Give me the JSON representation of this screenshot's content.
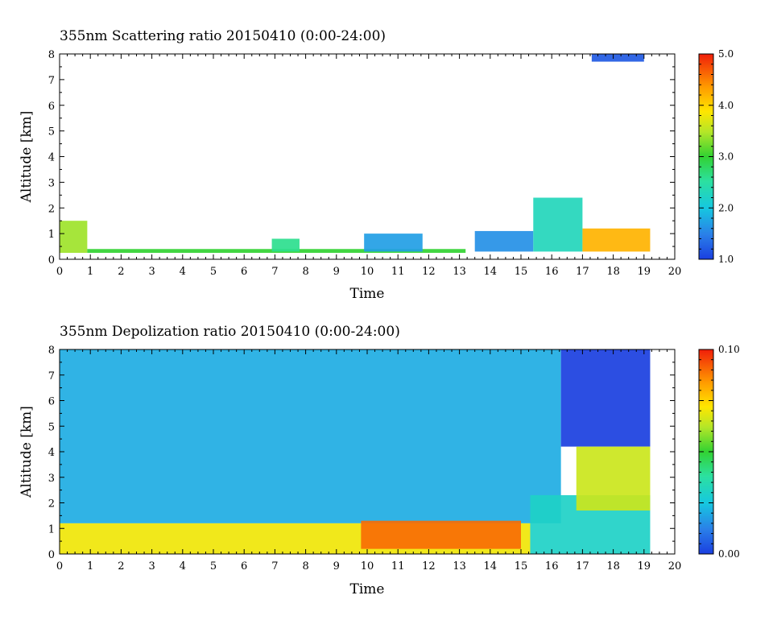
{
  "chart_data": [
    {
      "type": "heatmap",
      "title": "355nm Scattering ratio  20150410 (0:00-24:00)",
      "xlabel": "Time",
      "ylabel": "Altitude [km]",
      "xlim": [
        0,
        20
      ],
      "ylim": [
        0,
        8
      ],
      "xticks": [
        "0",
        "1",
        "2",
        "3",
        "4",
        "5",
        "6",
        "7",
        "8",
        "9",
        "10",
        "11",
        "12",
        "13",
        "14",
        "15",
        "16",
        "17",
        "18",
        "19",
        "20"
      ],
      "yticks": [
        "0",
        "1",
        "2",
        "3",
        "4",
        "5",
        "6",
        "7",
        "8"
      ],
      "colorbar": {
        "min": 1.0,
        "max": 5.0,
        "ticks": [
          "1.0",
          "2.0",
          "3.0",
          "4.0",
          "5.0"
        ]
      },
      "features": [
        {
          "t0": 0.0,
          "t1": 0.9,
          "z0": 0.25,
          "z1": 1.5,
          "v": 3.4
        },
        {
          "t0": 0.9,
          "t1": 13.2,
          "z0": 0.25,
          "z1": 0.4,
          "v": 3.0
        },
        {
          "t0": 6.9,
          "t1": 7.8,
          "z0": 0.3,
          "z1": 0.8,
          "v": 2.6
        },
        {
          "t0": 9.9,
          "t1": 11.8,
          "z0": 0.3,
          "z1": 1.0,
          "v": 1.7
        },
        {
          "t0": 13.5,
          "t1": 15.4,
          "z0": 0.3,
          "z1": 1.1,
          "v": 1.6
        },
        {
          "t0": 15.4,
          "t1": 17.0,
          "z0": 0.3,
          "z1": 2.4,
          "v": 2.3
        },
        {
          "t0": 17.0,
          "t1": 19.2,
          "z0": 0.3,
          "z1": 1.2,
          "v": 4.2
        },
        {
          "t0": 17.3,
          "t1": 19.0,
          "z0": 7.7,
          "z1": 8.0,
          "v": 1.2
        }
      ]
    },
    {
      "type": "heatmap",
      "title": "355nm Depolization ratio  20150410 (0:00-24:00)",
      "xlabel": "Time",
      "ylabel": "Altitude [km]",
      "xlim": [
        0,
        20
      ],
      "ylim": [
        0,
        8
      ],
      "xticks": [
        "0",
        "1",
        "2",
        "3",
        "4",
        "5",
        "6",
        "7",
        "8",
        "9",
        "10",
        "11",
        "12",
        "13",
        "14",
        "15",
        "16",
        "17",
        "18",
        "19",
        "20"
      ],
      "yticks": [
        "0",
        "1",
        "2",
        "3",
        "4",
        "5",
        "6",
        "7",
        "8"
      ],
      "colorbar": {
        "min": 0.0,
        "max": 0.1,
        "ticks": [
          "0.00",
          "0.10"
        ]
      },
      "features": [
        {
          "t0": 0.0,
          "t1": 16.3,
          "z0": 1.2,
          "z1": 8.0,
          "v": 0.02
        },
        {
          "t0": 16.3,
          "t1": 19.2,
          "z0": 4.2,
          "z1": 8.0,
          "v": 0.0
        },
        {
          "t0": 0.0,
          "t1": 15.3,
          "z0": 0.0,
          "z1": 1.2,
          "v": 0.07
        },
        {
          "t0": 9.8,
          "t1": 15.0,
          "z0": 0.2,
          "z1": 1.3,
          "v": 0.09
        },
        {
          "t0": 15.3,
          "t1": 19.2,
          "z0": 0.0,
          "z1": 2.3,
          "v": 0.03
        },
        {
          "t0": 16.8,
          "t1": 19.2,
          "z0": 1.7,
          "z1": 4.2,
          "v": 0.065
        }
      ]
    }
  ]
}
